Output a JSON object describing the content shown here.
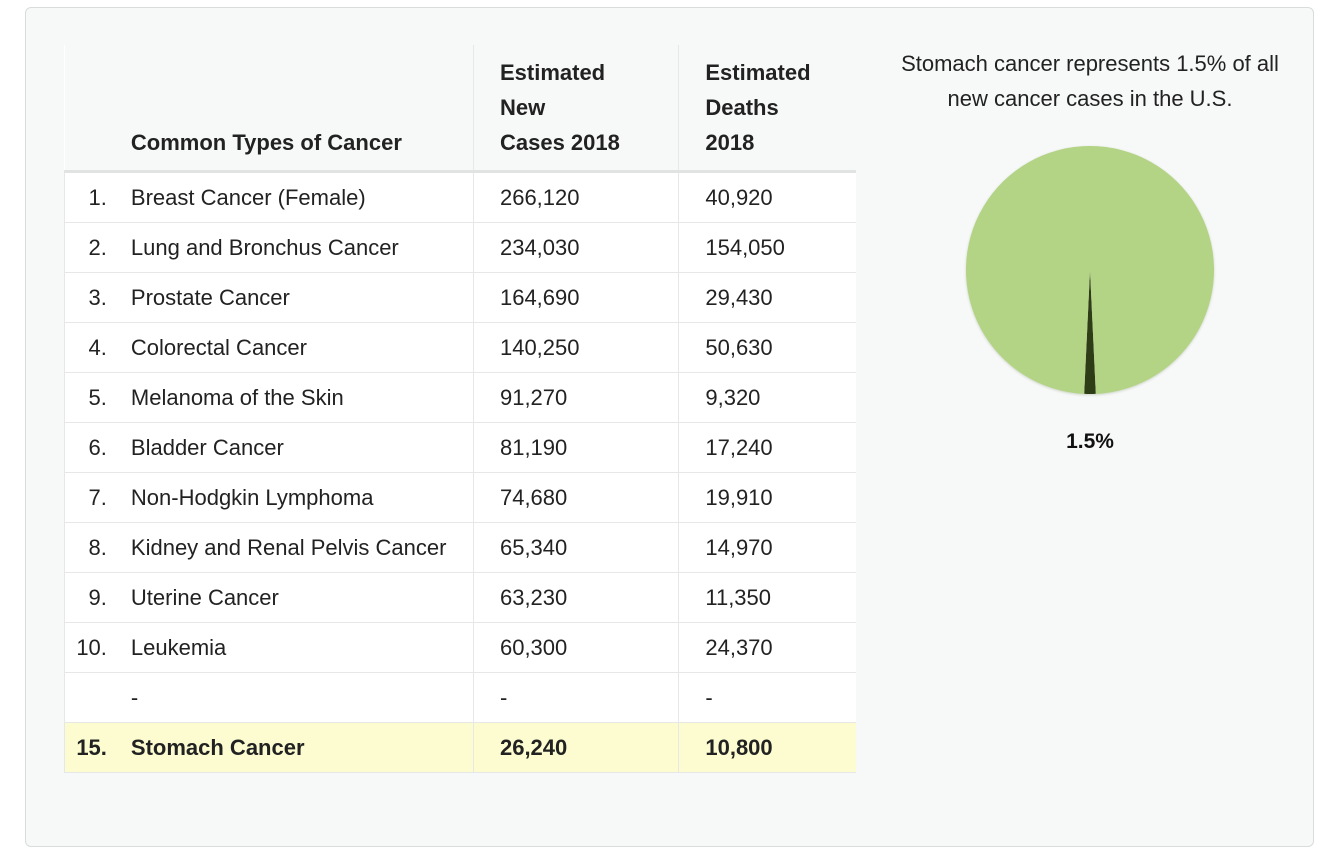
{
  "table": {
    "headers": {
      "name": "Common Types of Cancer",
      "cases": [
        "Estimated",
        "New",
        "Cases 2018"
      ],
      "deaths": [
        "Estimated",
        "Deaths",
        "2018"
      ]
    },
    "rows": [
      {
        "rank": "1.",
        "name": "Breast Cancer (Female)",
        "cases": "266,120",
        "deaths": "40,920"
      },
      {
        "rank": "2.",
        "name": "Lung and Bronchus Cancer",
        "cases": "234,030",
        "deaths": "154,050"
      },
      {
        "rank": "3.",
        "name": "Prostate Cancer",
        "cases": "164,690",
        "deaths": "29,430"
      },
      {
        "rank": "4.",
        "name": "Colorectal Cancer",
        "cases": "140,250",
        "deaths": "50,630"
      },
      {
        "rank": "5.",
        "name": "Melanoma of the Skin",
        "cases": "91,270",
        "deaths": "9,320"
      },
      {
        "rank": "6.",
        "name": "Bladder Cancer",
        "cases": "81,190",
        "deaths": "17,240"
      },
      {
        "rank": "7.",
        "name": "Non-Hodgkin Lymphoma",
        "cases": "74,680",
        "deaths": "19,910"
      },
      {
        "rank": "8.",
        "name": "Kidney and Renal Pelvis Cancer",
        "cases": "65,340",
        "deaths": "14,970"
      },
      {
        "rank": "9.",
        "name": "Uterine Cancer",
        "cases": "63,230",
        "deaths": "11,350"
      },
      {
        "rank": "10.",
        "name": "Leukemia",
        "cases": "60,300",
        "deaths": "24,370"
      },
      {
        "rank": "",
        "name": "-",
        "cases": "-",
        "deaths": "-"
      },
      {
        "rank": "15.",
        "name": "Stomach Cancer",
        "cases": "26,240",
        "deaths": "10,800",
        "highlight": true
      }
    ]
  },
  "chart_data": {
    "type": "pie",
    "title": "Stomach cancer represents 1.5% of all new cancer cases in the U.S.",
    "slices": [
      {
        "value": 1.5,
        "label": "1.5%",
        "color": "#2e3d14"
      },
      {
        "value": 98.5,
        "label": "",
        "color": "#b3d385"
      }
    ]
  }
}
